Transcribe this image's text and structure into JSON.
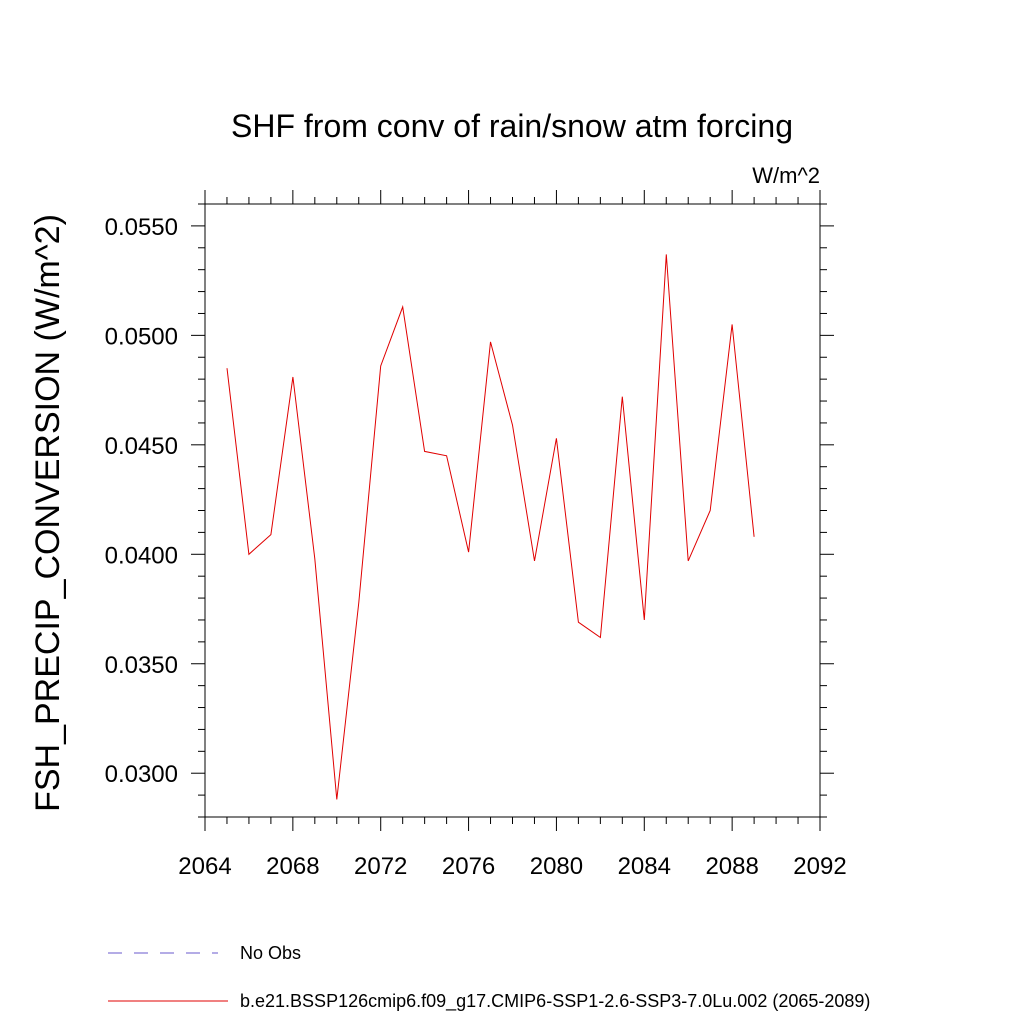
{
  "chart_data": {
    "type": "line",
    "title": "SHF from conv of rain/snow atm forcing",
    "units": "W/m^2",
    "ylabel": "FSH_PRECIP_CONVERSION  (W/m^2)",
    "xlabel": "",
    "xlim": [
      2064,
      2092
    ],
    "ylim": [
      0.028,
      0.056
    ],
    "x_ticks": [
      2064,
      2068,
      2072,
      2076,
      2080,
      2084,
      2088,
      2092
    ],
    "x_tick_labels": [
      "2064",
      "2068",
      "2072",
      "2076",
      "2080",
      "2084",
      "2088",
      "2092"
    ],
    "y_ticks": [
      0.03,
      0.035,
      0.04,
      0.045,
      0.05,
      0.055
    ],
    "y_tick_labels": [
      "0.0300",
      "0.0350",
      "0.0400",
      "0.0450",
      "0.0500",
      "0.0550"
    ],
    "grid": false,
    "legend_position": "bottom",
    "series": [
      {
        "name": "b.e21.BSSP126cmip6.f09_g17.CMIP6-SSP1-2.6-SSP3-7.0Lu.002 (2065-2089)",
        "color": "#e00000",
        "style": "solid",
        "x": [
          2065,
          2066,
          2067,
          2068,
          2069,
          2070,
          2071,
          2072,
          2073,
          2074,
          2075,
          2076,
          2077,
          2078,
          2079,
          2080,
          2081,
          2082,
          2083,
          2084,
          2085,
          2086,
          2087,
          2088,
          2089
        ],
        "values": [
          0.0485,
          0.04,
          0.0409,
          0.0481,
          0.0398,
          0.0288,
          0.0378,
          0.0486,
          0.0513,
          0.0447,
          0.0445,
          0.0401,
          0.0497,
          0.0459,
          0.0397,
          0.0453,
          0.0369,
          0.0362,
          0.0472,
          0.037,
          0.0537,
          0.0397,
          0.042,
          0.0505,
          0.0408
        ]
      },
      {
        "name": "No Obs",
        "color": "#6a5acd",
        "style": "dashed",
        "x": [],
        "values": []
      }
    ]
  }
}
